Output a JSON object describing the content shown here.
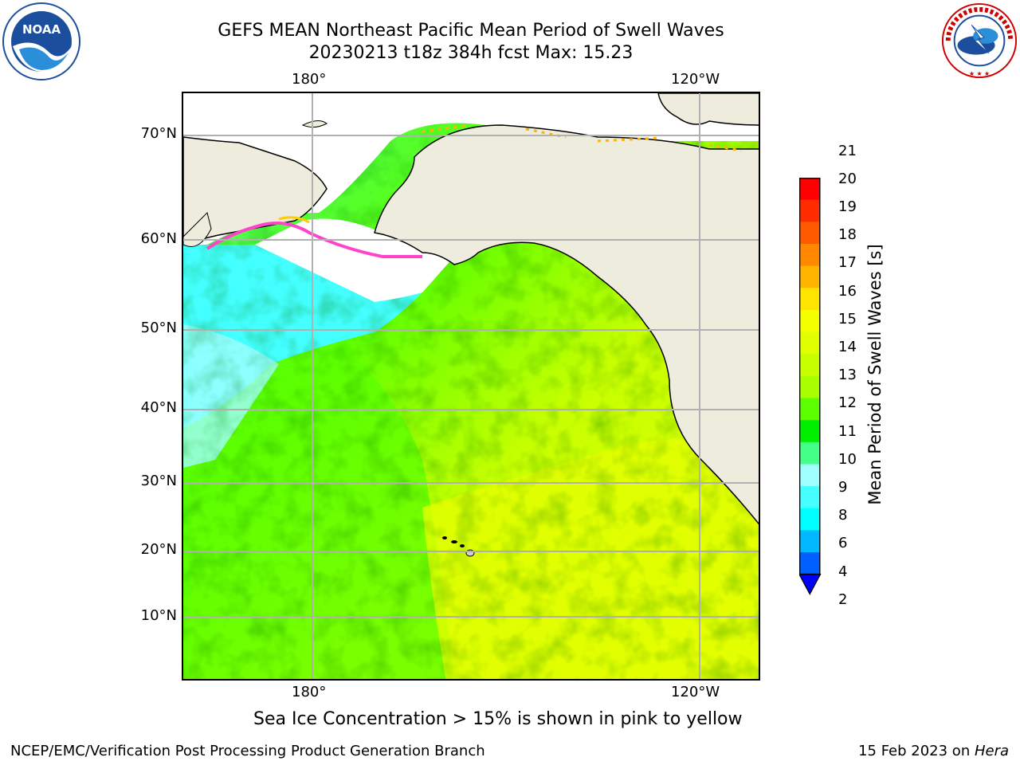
{
  "header": {
    "title_line1": "GEFS MEAN Northeast Pacific Mean Period of Swell Waves",
    "title_line2": "20230213 t18z 384h fcst   Max: 15.23"
  },
  "logos": {
    "left": "noaa-logo",
    "right": "nws-logo"
  },
  "map": {
    "lon_labels_top": [
      "180°",
      "120°W"
    ],
    "lon_labels_bottom": [
      "180°",
      "120°W"
    ],
    "lat_labels": [
      "70°N",
      "60°N",
      "50°N",
      "40°N",
      "30°N",
      "20°N",
      "10°N"
    ],
    "field": "Mean Period of Swell Waves",
    "colors": {
      "land": "#eeecdc",
      "ice_free_unshaded": "#ffffff",
      "grid": "#b0b0b0"
    }
  },
  "colorbar": {
    "label": "Mean Period of Swell Waves [s]",
    "ticks": [
      "21",
      "20",
      "19",
      "18",
      "17",
      "16",
      "15",
      "14",
      "13",
      "12",
      "11",
      "10",
      "9",
      "8",
      "6",
      "4",
      "2"
    ],
    "bands": [
      {
        "color": "#ff0000"
      },
      {
        "color": "#ff2c00"
      },
      {
        "color": "#ff5a00"
      },
      {
        "color": "#ff8800"
      },
      {
        "color": "#ffb400"
      },
      {
        "color": "#ffe400"
      },
      {
        "color": "#f4ff00"
      },
      {
        "color": "#e0ff00"
      },
      {
        "color": "#c8ff00"
      },
      {
        "color": "#a8ff00"
      },
      {
        "color": "#5cff00"
      },
      {
        "color": "#00ee00"
      },
      {
        "color": "#44ff88"
      },
      {
        "color": "#a0ffff"
      },
      {
        "color": "#44ffff"
      },
      {
        "color": "#00ffff"
      },
      {
        "color": "#00b8ff"
      },
      {
        "color": "#0060ff"
      }
    ],
    "extend_color": "#0000ff"
  },
  "note": "Sea Ice Concentration > 15% is shown in pink to yellow",
  "footer": {
    "left": "NCEP/EMC/Verification Post Processing Product Generation Branch",
    "right_date": "15 Feb 2023 on ",
    "right_host": "Hera"
  }
}
